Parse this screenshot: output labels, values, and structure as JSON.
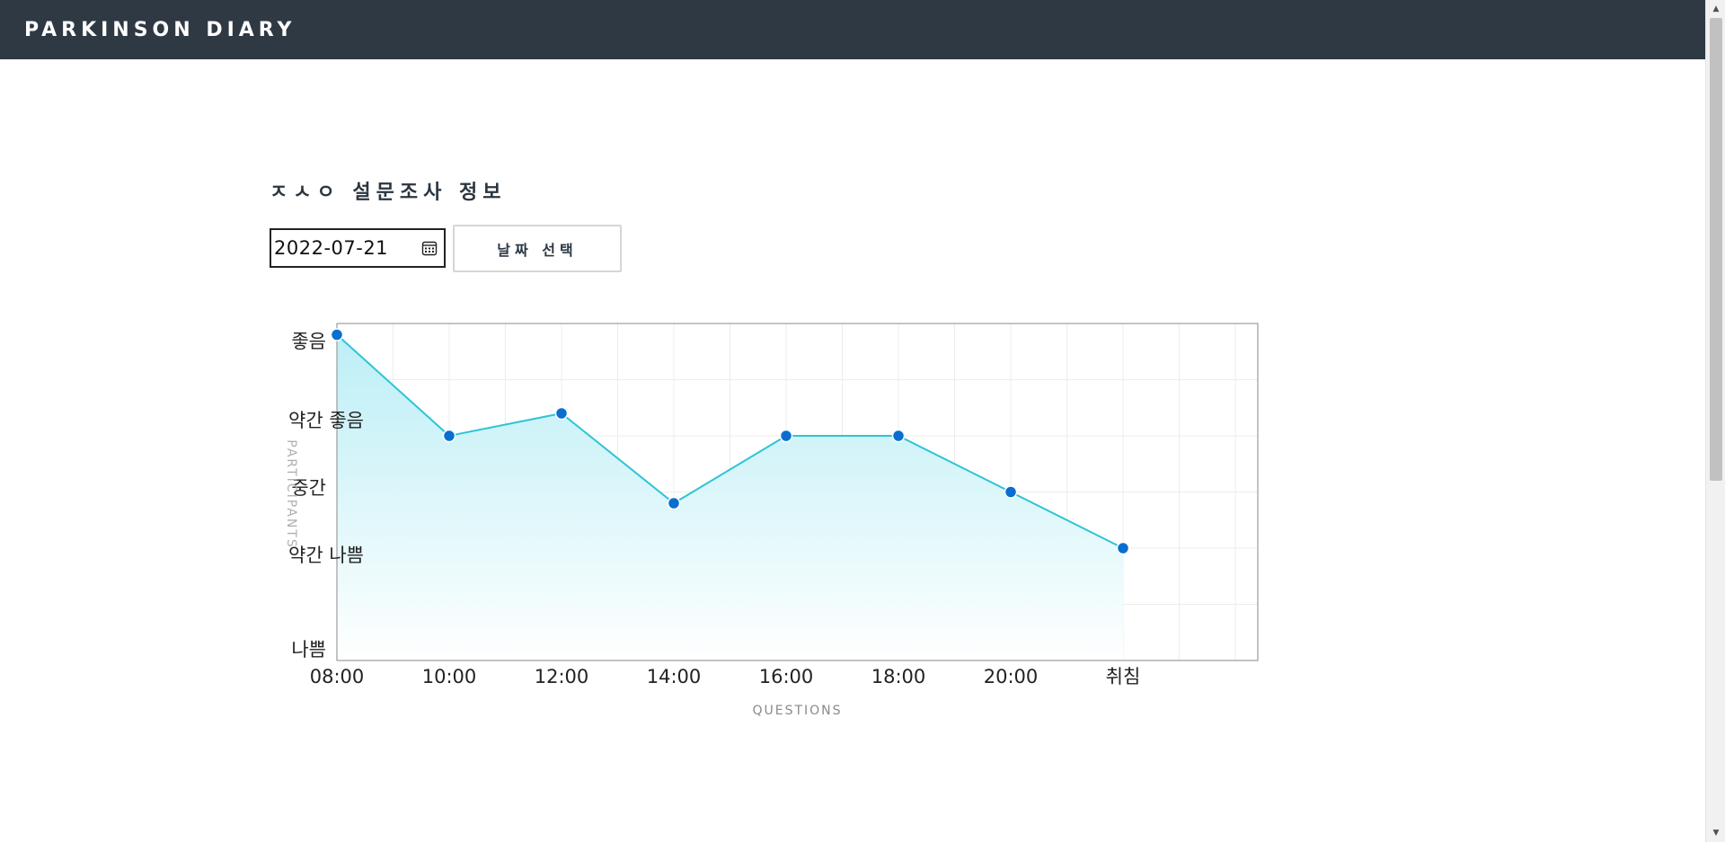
{
  "header": {
    "brand": "PARKINSON DIARY"
  },
  "survey": {
    "title": "ㅈㅅㅇ 설문조사 정보",
    "date_value": "2022-07-21",
    "pick_button_label": "날짜 선택"
  },
  "chart_data": {
    "type": "area",
    "categories": [
      "08:00",
      "10:00",
      "12:00",
      "14:00",
      "16:00",
      "18:00",
      "20:00",
      "취침"
    ],
    "y_tick_labels": [
      "좋음",
      "약간 좋음",
      "중간",
      "약간 나쁨",
      "나쁨"
    ],
    "series": [
      {
        "values": [
          5.8,
          4.0,
          4.4,
          2.8,
          4.0,
          4.0,
          3.0,
          2.0
        ]
      }
    ],
    "ylim": [
      0,
      6
    ],
    "xlabel": "QUESTIONS",
    "ylabel": "PARTICIPANTS",
    "grid": true,
    "line_color": "#2ec4d6",
    "point_color": "#0a6ed1",
    "fill_top_color": "#b9eef5",
    "fill_bottom_color": "#ffffff"
  },
  "icons": {
    "calendar": "calendar-icon",
    "scroll_up": "arrow-up-icon",
    "scroll_down": "arrow-down-icon"
  }
}
